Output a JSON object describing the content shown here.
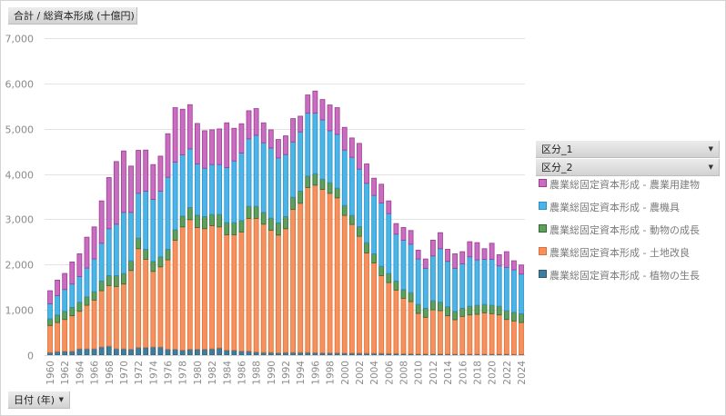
{
  "header": {
    "value_field_label": "合計 / 総資本形成 (十億円)"
  },
  "footer": {
    "date_field_label": "日付 (年)",
    "date_field_arrow": "▼"
  },
  "legend": {
    "fields": [
      {
        "label": "区分_1",
        "arrow": "▼"
      },
      {
        "label": "区分_2",
        "arrow": "▼"
      }
    ],
    "items": [
      {
        "label": "農業総固定資本形成 - 農業用建物",
        "color": "#C86DC0",
        "border": "#9B3D93"
      },
      {
        "label": "農業総固定資本形成 - 農機具",
        "color": "#4BB5E8",
        "border": "#2C8FC7"
      },
      {
        "label": "農業総固定資本形成 - 動物の成長",
        "color": "#5E9E5E",
        "border": "#2F6B2F"
      },
      {
        "label": "農業総固定資本形成 - 土地改良",
        "color": "#F4915E",
        "border": "#E06F33"
      },
      {
        "label": "農業総固定資本形成 - 植物の生長",
        "color": "#3F7D9E",
        "border": "#2A5C78"
      }
    ]
  },
  "chart_data": {
    "type": "bar",
    "stacked": true,
    "title": "合計 / 総資本形成 (十億円)",
    "xlabel": "日付 (年)",
    "ylabel": "",
    "ylim": [
      0,
      7000
    ],
    "yticks": [
      0,
      1000,
      2000,
      3000,
      4000,
      5000,
      6000,
      7000
    ],
    "ytick_labels": [
      "0",
      "1,000",
      "2,000",
      "3,000",
      "4,000",
      "5,000",
      "6,000",
      "7,000"
    ],
    "grid": true,
    "legend_position": "right",
    "categories": [
      "1960",
      "1961",
      "1962",
      "1963",
      "1964",
      "1965",
      "1966",
      "1967",
      "1968",
      "1969",
      "1970",
      "1971",
      "1972",
      "1973",
      "1974",
      "1975",
      "1976",
      "1977",
      "1978",
      "1979",
      "1980",
      "1981",
      "1982",
      "1983",
      "1984",
      "1985",
      "1986",
      "1987",
      "1988",
      "1989",
      "1990",
      "1991",
      "1992",
      "1993",
      "1994",
      "1995",
      "1996",
      "1997",
      "1998",
      "1999",
      "2000",
      "2001",
      "2002",
      "2003",
      "2004",
      "2005",
      "2006",
      "2007",
      "2008",
      "2009",
      "2010",
      "2011",
      "2012",
      "2013",
      "2014",
      "2015",
      "2016",
      "2017",
      "2018",
      "2019",
      "2020",
      "2021",
      "2022",
      "2023",
      "2024"
    ],
    "xtick_labels": [
      "1960",
      "1962",
      "1964",
      "1966",
      "1968",
      "1970",
      "1972",
      "1974",
      "1976",
      "1978",
      "1980",
      "1982",
      "1984",
      "1986",
      "1988",
      "1990",
      "1992",
      "1994",
      "1996",
      "1998",
      "2000",
      "2002",
      "2004",
      "2006",
      "2008",
      "2010",
      "2012",
      "2014",
      "2016",
      "2018",
      "2020",
      "2022",
      "2024"
    ],
    "series": [
      {
        "name": "農業総固定資本形成 - 植物の生長",
        "values": [
          60,
          80,
          87,
          87,
          140,
          140,
          140,
          180,
          200,
          140,
          140,
          130,
          170,
          170,
          180,
          180,
          130,
          130,
          110,
          130,
          130,
          130,
          140,
          160,
          110,
          110,
          90,
          90,
          70,
          60,
          60,
          50,
          60,
          60,
          60,
          60,
          55,
          50,
          50,
          50,
          45,
          45,
          45,
          40,
          40,
          40,
          35,
          35,
          30,
          30,
          25,
          25,
          25,
          25,
          20,
          20,
          20,
          20,
          20,
          20,
          20,
          20,
          20,
          15,
          15
        ]
      },
      {
        "name": "農業総固定資本形成 - 土地改良",
        "values": [
          595,
          641,
          701,
          782,
          828,
          962,
          1076,
          1243,
          1337,
          1377,
          1430,
          1740,
          2181,
          1948,
          1670,
          1770,
          1974,
          2409,
          2722,
          2862,
          2689,
          2662,
          2719,
          2672,
          2549,
          2549,
          2629,
          2930,
          2950,
          2832,
          2699,
          2602,
          2732,
          3160,
          3293,
          3641,
          3699,
          3611,
          3523,
          3423,
          3041,
          2841,
          2580,
          2218,
          1998,
          1717,
          1568,
          1402,
          1226,
          1152,
          897,
          811,
          977,
          957,
          849,
          762,
          836,
          868,
          882,
          916,
          896,
          868,
          768,
          740,
          706
        ]
      },
      {
        "name": "農業総固定資本形成 - 動物の成長",
        "values": [
          147,
          167,
          180,
          187,
          201,
          187,
          187,
          214,
          220,
          240,
          234,
          214,
          234,
          220,
          221,
          221,
          234,
          233,
          240,
          268,
          273,
          268,
          247,
          274,
          267,
          267,
          254,
          267,
          267,
          261,
          267,
          268,
          268,
          267,
          268,
          253,
          254,
          227,
          235,
          214,
          221,
          200,
          214,
          227,
          200,
          207,
          201,
          200,
          193,
          201,
          200,
          200,
          200,
          187,
          200,
          186,
          180,
          194,
          200,
          186,
          186,
          194,
          194,
          193,
          195
        ]
      },
      {
        "name": "農業総固定資本形成 - 農機具",
        "values": [
          334,
          428,
          482,
          514,
          568,
          635,
          721,
          834,
          1035,
          1135,
          1349,
          1069,
          989,
          1283,
          1369,
          1450,
          1590,
          1490,
          1350,
          1295,
          1130,
          1068,
          1102,
          1102,
          1216,
          1362,
          1489,
          1489,
          1569,
          1537,
          1549,
          1435,
          1369,
          1222,
          1309,
          1390,
          1336,
          1308,
          1148,
          1189,
          1222,
          1283,
          1269,
          1309,
          1289,
          1396,
          1322,
          1035,
          1090,
          1068,
          1002,
          882,
          988,
          1182,
          1002,
          950,
          982,
          1089,
          1002,
          996,
          1016,
          888,
          956,
          936,
          874
        ]
      },
      {
        "name": "農業総固定資本形成 - 農業用建物",
        "values": [
          287,
          341,
          354,
          488,
          501,
          681,
          708,
          936,
          1130,
          1383,
          1356,
          1022,
          949,
          908,
          768,
          774,
          962,
          1203,
          1009,
          976,
          894,
          828,
          768,
          788,
          988,
          722,
          648,
          621,
          589,
          440,
          401,
          408,
          414,
          515,
          347,
          401,
          488,
          449,
          569,
          589,
          501,
          427,
          568,
          428,
          381,
          414,
          281,
          234,
          280,
          301,
          194,
          206,
          349,
          354,
          267,
          320,
          267,
          334,
          381,
          233,
          353,
          248,
          347,
          200,
          200
        ]
      }
    ]
  }
}
